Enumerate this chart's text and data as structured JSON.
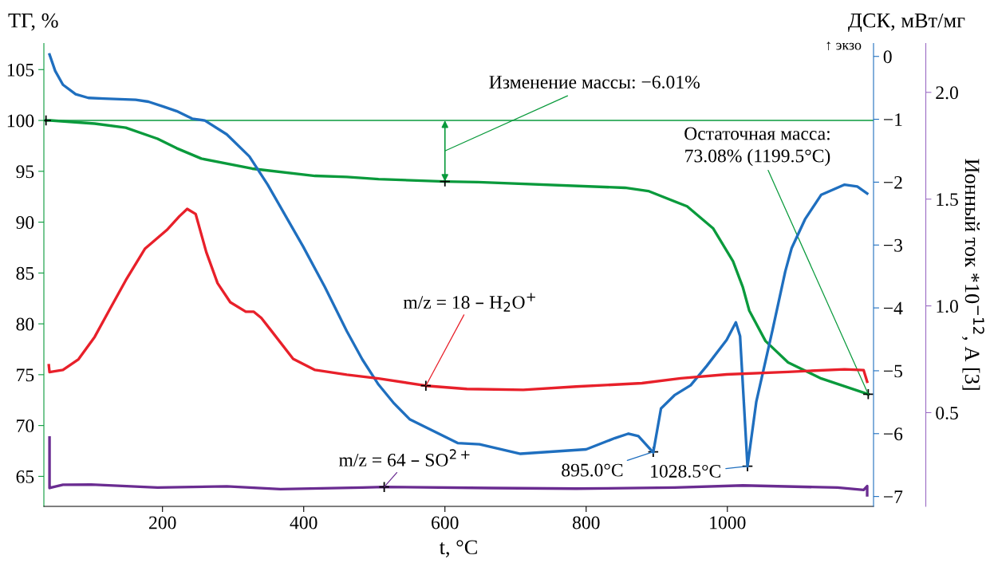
{
  "chart_data": {
    "type": "line",
    "xlabel": "t, °C",
    "ylabel": "ТГ, %",
    "y2label": "ДСК, мВт/мг",
    "y3label": "Ионный ток *10$^{−12}$, А [3]",
    "xlim": [
      32,
      1207
    ],
    "xticks": [
      200,
      400,
      600,
      800,
      1000
    ],
    "ylim": [
      62.05,
      107.57
    ],
    "yticks": [
      65,
      70,
      75,
      80,
      85,
      90,
      95,
      100,
      105
    ],
    "y2lim": [
      -7.157,
      0.206
    ],
    "y2ticks": [
      {
        "value": 0,
        "label": "0"
      },
      {
        "value": -1,
        "label": "−1"
      },
      {
        "value": -2,
        "label": "−2"
      },
      {
        "value": -3,
        "label": "−3"
      },
      {
        "value": -4,
        "label": "−4"
      },
      {
        "value": -5,
        "label": "−5"
      },
      {
        "value": -6,
        "label": "−6"
      },
      {
        "value": -7,
        "label": "−7"
      }
    ],
    "y3lim": [
      0.061,
      2.229
    ],
    "y3ticks": [
      {
        "value": 0.5,
        "label": "0.5"
      },
      {
        "value": 1.0,
        "label": "1.0"
      },
      {
        "value": 1.5,
        "label": "1.5"
      },
      {
        "value": 2.0,
        "label": "2.0"
      }
    ],
    "grid": false,
    "legend": false,
    "series": [
      {
        "color": "#0a9a3c",
        "axis": "y",
        "x": [
          35,
          41,
          104,
          148,
          193,
          220,
          255,
          327,
          416,
          461,
          506,
          600,
          647,
          855,
          888,
          943,
          980,
          1008,
          1022,
          1031,
          1054,
          1086,
          1133,
          1199.5
        ],
        "values": [
          100.0,
          100.0,
          99.69,
          99.29,
          98.2,
          97.27,
          96.25,
          95.26,
          94.55,
          94.45,
          94.23,
          94.0,
          93.93,
          93.38,
          93.06,
          91.55,
          89.37,
          86.15,
          83.58,
          81.3,
          78.31,
          76.2,
          74.62,
          73.08
        ]
      },
      {
        "color": "#1f6fbf",
        "axis": "y2",
        "x": [
          40,
          48,
          59,
          77,
          95,
          117,
          162,
          180,
          202,
          220,
          242,
          260,
          291,
          323,
          349,
          376,
          399,
          430,
          461,
          483,
          506,
          528,
          550,
          586,
          618,
          649,
          707,
          800,
          841,
          860,
          874,
          895,
          906,
          925,
          948,
          971,
          999,
          1012,
          1018,
          1028.5,
          1041,
          1064,
          1082,
          1091,
          1110,
          1133,
          1166,
          1184,
          1198
        ],
        "values": [
          0.03,
          -0.23,
          -0.45,
          -0.6,
          -0.66,
          -0.67,
          -0.69,
          -0.72,
          -0.8,
          -0.87,
          -0.99,
          -1.02,
          -1.24,
          -1.59,
          -2.04,
          -2.57,
          -3.02,
          -3.67,
          -4.37,
          -4.82,
          -5.22,
          -5.52,
          -5.77,
          -5.97,
          -6.15,
          -6.17,
          -6.32,
          -6.25,
          -6.07,
          -6.0,
          -6.04,
          -6.3,
          -5.6,
          -5.39,
          -5.23,
          -4.92,
          -4.51,
          -4.23,
          -4.45,
          -6.52,
          -5.49,
          -4.35,
          -3.42,
          -3.05,
          -2.59,
          -2.2,
          -2.04,
          -2.07,
          -2.18
        ]
      },
      {
        "name": "m/z = 18 – H$_{2}$O$^{+}$",
        "color": "#e8202a",
        "axis": "y3",
        "x": [
          39,
          40,
          59,
          81,
          104,
          126,
          148,
          175,
          206,
          224,
          235,
          247,
          262,
          278,
          296,
          318,
          329,
          340,
          354,
          385,
          416,
          461,
          506,
          573,
          631,
          711,
          786,
          879,
          934,
          999,
          1086,
          1166,
          1193,
          1198
        ],
        "values": [
          0.722,
          0.69,
          0.7,
          0.75,
          0.855,
          0.988,
          1.12,
          1.267,
          1.355,
          1.42,
          1.454,
          1.43,
          1.252,
          1.106,
          1.017,
          0.973,
          0.973,
          0.943,
          0.884,
          0.752,
          0.7,
          0.678,
          0.66,
          0.626,
          0.611,
          0.607,
          0.622,
          0.638,
          0.661,
          0.679,
          0.691,
          0.703,
          0.699,
          0.645
        ]
      },
      {
        "name": "m/z = 64 – SO$^{2+}$",
        "color": "#6a2c91",
        "axis": "y3",
        "x": [
          40,
          40,
          59,
          99,
          193,
          291,
          367,
          483,
          514,
          666,
          786,
          925,
          1022,
          1156,
          1193,
          1198,
          1198
        ],
        "values": [
          0.383,
          0.147,
          0.162,
          0.163,
          0.149,
          0.155,
          0.142,
          0.149,
          0.152,
          0.147,
          0.144,
          0.149,
          0.159,
          0.149,
          0.138,
          0.156,
          0.113
        ]
      }
    ],
    "ref_lines": [
      {
        "axis": "y",
        "value": 100,
        "color": "#0a9a3c"
      }
    ],
    "annotations": [
      "Изменение массы: −6.01%",
      {
        "text": "Остаточная масса:\n73.08% (1199.5°C)",
        "x": 1199.5,
        "y": 73.08
      },
      {
        "text": "895.0°C",
        "x": 895,
        "y": 67.41
      },
      {
        "text": "1028.5°C",
        "x": 1028.5,
        "y": 66.0
      },
      "↑ экзо"
    ]
  }
}
